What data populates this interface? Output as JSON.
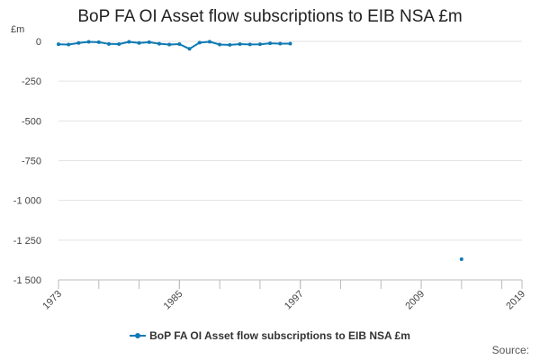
{
  "colors": {
    "series": "#0f7ab4",
    "grid": "#e3e3e3",
    "axis": "#bbbbbb"
  },
  "source_label": "Source:",
  "chart_data": {
    "type": "line",
    "title": "BoP FA OI Asset flow subscriptions to EIB NSA £m",
    "unit_label": "£m",
    "xlabel": "",
    "ylabel": "",
    "xlim": [
      1973,
      2019
    ],
    "ylim": [
      -1500,
      0
    ],
    "x_ticks": [
      "1973",
      "1985",
      "1997",
      "2009",
      "2019"
    ],
    "y_ticks": [
      "0",
      "-250",
      "-500",
      "-750",
      "-1 000",
      "-1 250",
      "-1 500"
    ],
    "grid": true,
    "legend_position": "bottom",
    "series": [
      {
        "name": "BoP FA OI Asset flow subscriptions to EIB NSA £m",
        "x": [
          1973,
          1974,
          1975,
          1976,
          1977,
          1978,
          1979,
          1980,
          1981,
          1982,
          1983,
          1984,
          1985,
          1986,
          1987,
          1988,
          1989,
          1990,
          1991,
          1992,
          1993,
          1994,
          1995,
          1996
        ],
        "y": [
          -18,
          -20,
          -10,
          -3,
          -5,
          -16,
          -17,
          -3,
          -10,
          -5,
          -15,
          -20,
          -17,
          -47,
          -8,
          -2,
          -20,
          -22,
          -17,
          -19,
          -18,
          -12,
          -14,
          -14
        ]
      },
      {
        "name": "BoP FA OI Asset flow subscriptions to EIB NSA £m",
        "x": [
          2013
        ],
        "y": [
          -1370
        ]
      }
    ]
  }
}
